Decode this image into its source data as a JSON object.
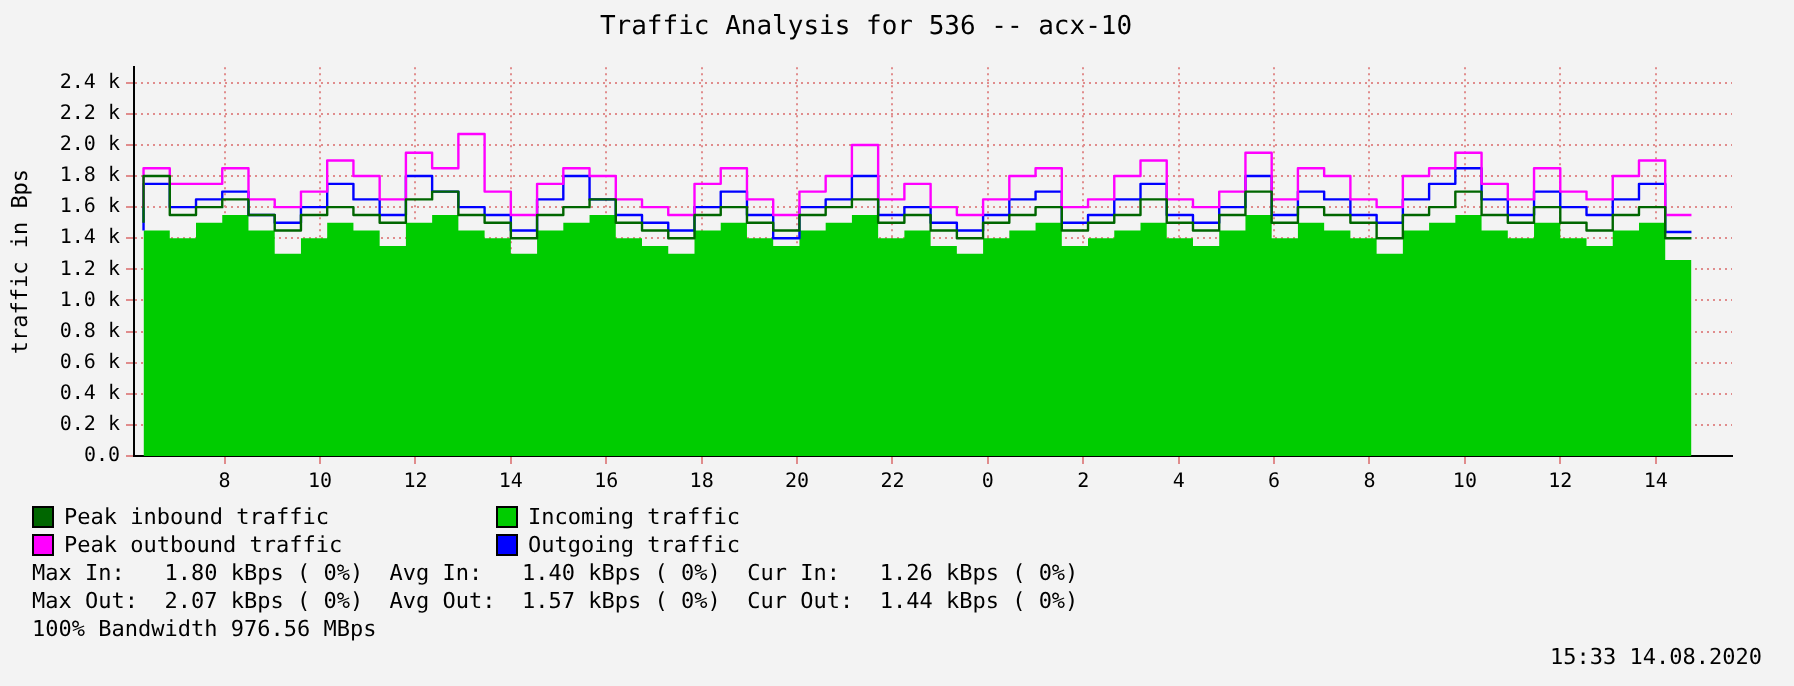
{
  "chart_data": {
    "type": "step",
    "title": "Traffic Analysis for 536 -- acx-10",
    "ylabel": "traffic in Bps",
    "x": [
      "2020-08-13T06:18",
      "2020-08-13T06:51",
      "2020-08-13T07:24",
      "2020-08-13T07:57",
      "2020-08-13T08:30",
      "2020-08-13T09:03",
      "2020-08-13T09:36",
      "2020-08-13T10:09",
      "2020-08-13T10:42",
      "2020-08-13T11:15",
      "2020-08-13T11:48",
      "2020-08-13T12:21",
      "2020-08-13T12:54",
      "2020-08-13T13:27",
      "2020-08-13T14:00",
      "2020-08-13T14:33",
      "2020-08-13T15:06",
      "2020-08-13T15:39",
      "2020-08-13T16:12",
      "2020-08-13T16:45",
      "2020-08-13T17:18",
      "2020-08-13T17:51",
      "2020-08-13T18:24",
      "2020-08-13T18:57",
      "2020-08-13T19:30",
      "2020-08-13T20:03",
      "2020-08-13T20:36",
      "2020-08-13T21:09",
      "2020-08-13T21:42",
      "2020-08-13T22:15",
      "2020-08-13T22:48",
      "2020-08-13T23:21",
      "2020-08-13T23:54",
      "2020-08-14T00:27",
      "2020-08-14T01:00",
      "2020-08-14T01:33",
      "2020-08-14T02:06",
      "2020-08-14T02:39",
      "2020-08-14T03:12",
      "2020-08-14T03:45",
      "2020-08-14T04:18",
      "2020-08-14T04:51",
      "2020-08-14T05:24",
      "2020-08-14T05:57",
      "2020-08-14T06:30",
      "2020-08-14T07:03",
      "2020-08-14T07:36",
      "2020-08-14T08:09",
      "2020-08-14T08:42",
      "2020-08-14T09:15",
      "2020-08-14T09:48",
      "2020-08-14T10:21",
      "2020-08-14T10:54",
      "2020-08-14T11:27",
      "2020-08-14T12:00",
      "2020-08-14T12:33",
      "2020-08-14T13:06",
      "2020-08-14T13:39",
      "2020-08-14T14:12",
      "2020-08-14T14:45"
    ],
    "xlim": [
      "2020-08-13T06:06",
      "2020-08-14T15:36"
    ],
    "xticks": [
      {
        "value": "2020-08-13T08:00",
        "label": "8"
      },
      {
        "value": "2020-08-13T10:00",
        "label": "10"
      },
      {
        "value": "2020-08-13T12:00",
        "label": "12"
      },
      {
        "value": "2020-08-13T14:00",
        "label": "14"
      },
      {
        "value": "2020-08-13T16:00",
        "label": "16"
      },
      {
        "value": "2020-08-13T18:00",
        "label": "18"
      },
      {
        "value": "2020-08-13T20:00",
        "label": "20"
      },
      {
        "value": "2020-08-13T22:00",
        "label": "22"
      },
      {
        "value": "2020-08-14T00:00",
        "label": "0"
      },
      {
        "value": "2020-08-14T02:00",
        "label": "2"
      },
      {
        "value": "2020-08-14T04:00",
        "label": "4"
      },
      {
        "value": "2020-08-14T06:00",
        "label": "6"
      },
      {
        "value": "2020-08-14T08:00",
        "label": "8"
      },
      {
        "value": "2020-08-14T10:00",
        "label": "10"
      },
      {
        "value": "2020-08-14T12:00",
        "label": "12"
      },
      {
        "value": "2020-08-14T14:00",
        "label": "14"
      }
    ],
    "ylim": [
      0,
      2500
    ],
    "yticks": [
      {
        "value": 0,
        "label": "0.0"
      },
      {
        "value": 200,
        "label": "0.2 k"
      },
      {
        "value": 400,
        "label": "0.4 k"
      },
      {
        "value": 600,
        "label": "0.6 k"
      },
      {
        "value": 800,
        "label": "0.8 k"
      },
      {
        "value": 1000,
        "label": "1.0 k"
      },
      {
        "value": 1200,
        "label": "1.2 k"
      },
      {
        "value": 1400,
        "label": "1.4 k"
      },
      {
        "value": 1600,
        "label": "1.6 k"
      },
      {
        "value": 1800,
        "label": "1.8 k"
      },
      {
        "value": 2000,
        "label": "2.0 k"
      },
      {
        "value": 2200,
        "label": "2.2 k"
      },
      {
        "value": 2400,
        "label": "2.4 k"
      }
    ],
    "series": [
      {
        "name": "Incoming traffic",
        "type": "area",
        "color": "#00cc00",
        "values": [
          1350,
          1450,
          1400,
          1500,
          1550,
          1450,
          1300,
          1400,
          1500,
          1450,
          1350,
          1500,
          1550,
          1450,
          1400,
          1300,
          1450,
          1500,
          1550,
          1400,
          1350,
          1300,
          1450,
          1500,
          1400,
          1350,
          1450,
          1500,
          1550,
          1400,
          1450,
          1350,
          1300,
          1400,
          1450,
          1500,
          1350,
          1400,
          1450,
          1500,
          1400,
          1350,
          1450,
          1550,
          1400,
          1500,
          1450,
          1400,
          1300,
          1450,
          1500,
          1550,
          1450,
          1400,
          1500,
          1400,
          1350,
          1450,
          1500,
          1260
        ]
      },
      {
        "name": "Peak inbound traffic",
        "color": "#006600",
        "values": [
          1500,
          1800,
          1550,
          1600,
          1650,
          1550,
          1450,
          1550,
          1600,
          1550,
          1500,
          1650,
          1700,
          1550,
          1500,
          1400,
          1550,
          1600,
          1650,
          1500,
          1450,
          1400,
          1550,
          1600,
          1500,
          1450,
          1550,
          1600,
          1650,
          1500,
          1550,
          1450,
          1400,
          1500,
          1550,
          1600,
          1450,
          1500,
          1550,
          1650,
          1500,
          1450,
          1550,
          1700,
          1500,
          1600,
          1550,
          1500,
          1400,
          1550,
          1600,
          1700,
          1550,
          1500,
          1600,
          1500,
          1450,
          1550,
          1600,
          1400
        ]
      },
      {
        "name": "Peak outbound traffic",
        "color": "#ff00ff",
        "values": [
          1600,
          1850,
          1750,
          1750,
          1850,
          1650,
          1600,
          1700,
          1900,
          1800,
          1650,
          1950,
          1850,
          2070,
          1700,
          1550,
          1750,
          1850,
          1800,
          1650,
          1600,
          1550,
          1750,
          1850,
          1650,
          1550,
          1700,
          1800,
          2000,
          1650,
          1750,
          1600,
          1550,
          1650,
          1800,
          1850,
          1600,
          1650,
          1800,
          1900,
          1650,
          1600,
          1700,
          1950,
          1650,
          1850,
          1800,
          1650,
          1600,
          1800,
          1850,
          1950,
          1750,
          1650,
          1850,
          1700,
          1650,
          1800,
          1900,
          1550
        ]
      },
      {
        "name": "Outgoing traffic",
        "color": "#0000ff",
        "values": [
          1450,
          1750,
          1600,
          1650,
          1700,
          1550,
          1500,
          1600,
          1750,
          1650,
          1550,
          1800,
          1700,
          1600,
          1550,
          1450,
          1650,
          1800,
          1650,
          1550,
          1500,
          1450,
          1600,
          1700,
          1550,
          1400,
          1600,
          1650,
          1800,
          1550,
          1600,
          1500,
          1450,
          1550,
          1650,
          1700,
          1500,
          1550,
          1650,
          1750,
          1550,
          1500,
          1600,
          1800,
          1550,
          1700,
          1650,
          1550,
          1500,
          1650,
          1750,
          1850,
          1650,
          1550,
          1700,
          1600,
          1550,
          1650,
          1750,
          1440
        ]
      }
    ],
    "grid": true,
    "legend": "bottom",
    "line_style": "solid",
    "annotations": [
      "Max In:   1.80 kBps ( 0%)  Avg In:   1.40 kBps ( 0%)  Cur In:   1.26 kBps ( 0%)",
      "Max Out:  2.07 kBps ( 0%)  Avg Out:  1.57 kBps ( 0%)  Cur Out:  1.44 kBps ( 0%)",
      "100% Bandwidth 976.56 MBps",
      "15:33 14.08.2020"
    ]
  }
}
